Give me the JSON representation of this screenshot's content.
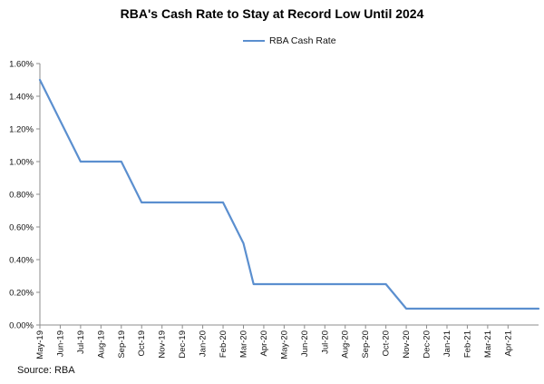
{
  "chart_data": {
    "type": "line",
    "title": "RBA's Cash Rate to Stay at Record Low Until 2024",
    "xlabel": "",
    "ylabel": "",
    "source": "Source: RBA",
    "legend_placement": "top-center",
    "grid": false,
    "categories": [
      "May-19",
      "Jun-19",
      "Jul-19",
      "Aug-19",
      "Sep-19",
      "Oct-19",
      "Nov-19",
      "Dec-19",
      "Jan-20",
      "Feb-20",
      "Mar-20",
      "Apr-20",
      "May-20",
      "Jun-20",
      "Jul-20",
      "Aug-20",
      "Sep-20",
      "Oct-20",
      "Nov-20",
      "Dec-20",
      "Jan-21",
      "Feb-21",
      "Mar-21",
      "Apr-21"
    ],
    "ylim": [
      0,
      1.6
    ],
    "yticks": [
      0,
      0.2,
      0.4,
      0.6,
      0.8,
      1.0,
      1.2,
      1.4,
      1.6
    ],
    "ytick_labels": [
      "0.00%",
      "0.20%",
      "0.40%",
      "0.60%",
      "0.80%",
      "1.00%",
      "1.20%",
      "1.40%",
      "1.60%"
    ],
    "series": [
      {
        "name": "RBA Cash Rate",
        "color": "#5b8fcf",
        "points": [
          {
            "x": 0,
            "y": 1.5
          },
          {
            "x": 1,
            "y": 1.25
          },
          {
            "x": 2,
            "y": 1.0
          },
          {
            "x": 4,
            "y": 1.0
          },
          {
            "x": 5,
            "y": 0.75
          },
          {
            "x": 9,
            "y": 0.75
          },
          {
            "x": 10,
            "y": 0.5
          },
          {
            "x": 10.5,
            "y": 0.25
          },
          {
            "x": 17,
            "y": 0.25
          },
          {
            "x": 18,
            "y": 0.1
          },
          {
            "x": 24.5,
            "y": 0.1
          }
        ]
      }
    ]
  }
}
